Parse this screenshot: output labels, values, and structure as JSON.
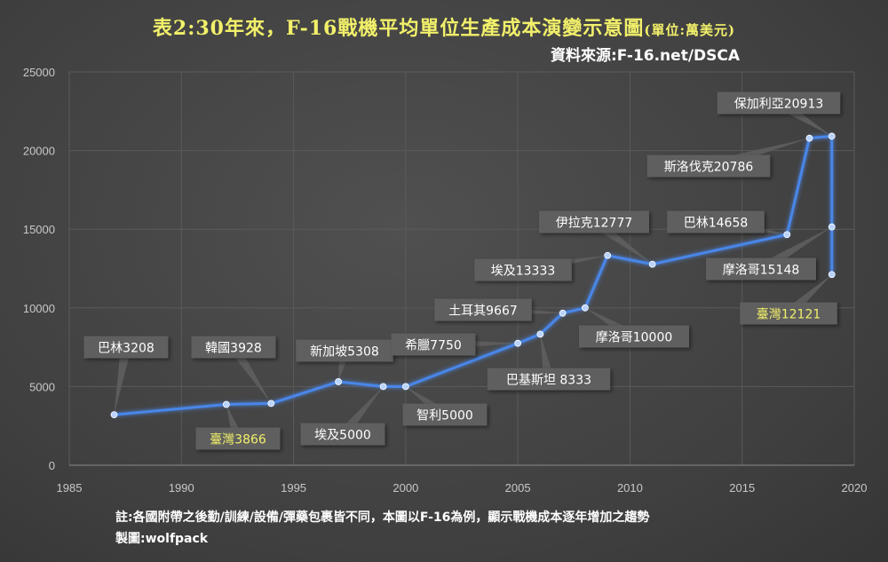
{
  "title_main": "表2:30年來，F-16戰機平均單位生產成本演變示意圖",
  "title_unit": "(單位:萬美元)",
  "source": "資料來源:F-16.net/DSCA",
  "note_line1": "註:各國附帶之後勤/訓練/設備/彈藥包裹皆不同，本圖以F-16為例，顯示戰機成本逐年增加之趨勢",
  "note_line2": "製圖:wolfpack",
  "colors": {
    "background": "#454545",
    "line": "#4a86e8",
    "marker": "#b9d3ff",
    "label_box": "#5e5e5e",
    "label_text": "#ffffff",
    "highlight_text": "#f2f06a",
    "title": "#f2f06a",
    "grid": "#5a5a5a"
  },
  "chart_data": {
    "type": "line",
    "xlim": [
      1985,
      2020
    ],
    "ylim": [
      0,
      25000
    ],
    "x_ticks": [
      1985,
      1990,
      1995,
      2000,
      2005,
      2010,
      2015,
      2020
    ],
    "y_ticks": [
      0,
      5000,
      10000,
      15000,
      20000,
      25000
    ],
    "grid": true,
    "points": [
      {
        "x": 1987,
        "y": 3208,
        "label": "巴林3208"
      },
      {
        "x": 1992,
        "y": 3866,
        "label": "臺灣3866",
        "highlight": true
      },
      {
        "x": 1994,
        "y": 3928,
        "label": "韓國3928"
      },
      {
        "x": 1997,
        "y": 5308,
        "label": "新加坡5308"
      },
      {
        "x": 1999,
        "y": 5000,
        "label": "埃及5000"
      },
      {
        "x": 2000,
        "y": 5000,
        "label": "智利5000"
      },
      {
        "x": 2005,
        "y": 7750,
        "label": "希臘7750"
      },
      {
        "x": 2006,
        "y": 8333,
        "label": "巴基斯坦 8333"
      },
      {
        "x": 2007,
        "y": 9667,
        "label": "土耳其9667"
      },
      {
        "x": 2008,
        "y": 10000,
        "label": "摩洛哥10000"
      },
      {
        "x": 2009,
        "y": 13333,
        "label": "埃及13333"
      },
      {
        "x": 2011,
        "y": 12777,
        "label": "伊拉克12777"
      },
      {
        "x": 2017,
        "y": 14658,
        "label": "巴林14658"
      },
      {
        "x": 2018,
        "y": 20786,
        "label": "斯洛伐克20786"
      },
      {
        "x": 2019,
        "y": 20913,
        "label": "保加利亞20913"
      },
      {
        "x": 2019,
        "y": 15148,
        "label": "摩洛哥15148"
      },
      {
        "x": 2019,
        "y": 12121,
        "label": "臺灣12121",
        "highlight": true
      }
    ]
  }
}
